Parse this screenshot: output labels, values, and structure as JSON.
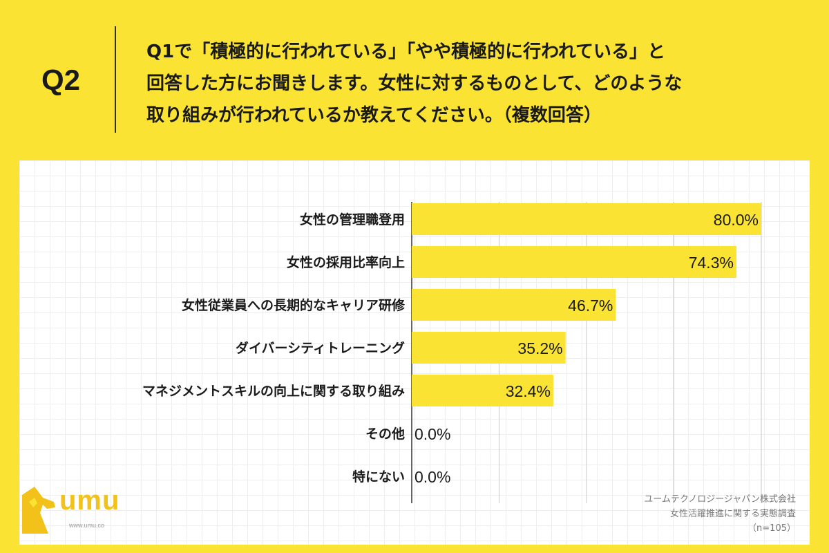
{
  "question": {
    "number": "Q2",
    "lines": [
      "Q1で「積極的に行われている」「やや積極的に行われている」と",
      "回答した方にお聞きします。女性に対するものとして、どのような",
      "取り組みが行われているか教えてください。（複数回答）"
    ]
  },
  "chart_data": {
    "type": "bar",
    "orientation": "horizontal",
    "categories": [
      "女性の管理職登用",
      "女性の採用比率向上",
      "女性従業員への長期的なキャリア研修",
      "ダイバーシティトレーニング",
      "マネジメントスキルの向上に関する取り組み",
      "その他",
      "特にない"
    ],
    "values": [
      80.0,
      74.3,
      46.7,
      35.2,
      32.4,
      0.0,
      0.0
    ],
    "value_labels": [
      "80.0%",
      "74.3%",
      "46.7%",
      "35.2%",
      "32.4%",
      "0.0%",
      "0.0%"
    ],
    "xlim": [
      0,
      80
    ],
    "gridlines": [
      0,
      20,
      40,
      60,
      80
    ],
    "bar_color": "#FAE332"
  },
  "logo": {
    "text": "umu",
    "url": "www.umu.co",
    "color": "#F2C21A"
  },
  "source": {
    "company": "ユームテクノロジージャパン株式会社",
    "survey": "女性活躍推進に関する実態調査",
    "sample": "（n=105）"
  }
}
